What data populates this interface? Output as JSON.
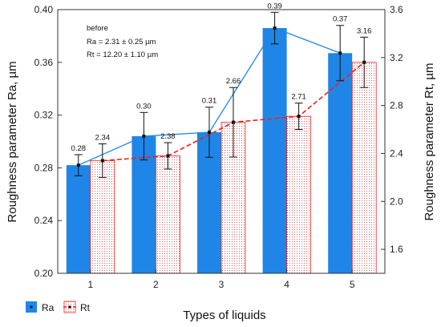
{
  "chart_data": {
    "type": "bar",
    "categories": [
      "1",
      "2",
      "3",
      "4",
      "5"
    ],
    "xlabel": "Types of liquids",
    "ylabel_left": "Roughness parameter Ra, µm",
    "ylabel_right": "Roughness parameter Rt, µm",
    "ylim_left": [
      0.2,
      0.4
    ],
    "ylim_right": [
      1.4,
      3.6
    ],
    "yticks_left": [
      "0.20",
      "0.24",
      "0.28",
      "0.32",
      "0.36",
      "0.40"
    ],
    "yticks_right": [
      "1.6",
      "2.0",
      "2.4",
      "2.8",
      "3.2",
      "3.6"
    ],
    "grid": false,
    "legend_position": "bottom-left",
    "annotation": {
      "line1": "before",
      "line2": "Ra = 2.31 ± 0.25 µm",
      "line3": "Rt = 12.20 ± 1.10 µm"
    },
    "series": [
      {
        "name": "Ra",
        "axis": "left",
        "color": "#1f86e8",
        "values": [
          0.282,
          0.304,
          0.307,
          0.386,
          0.367
        ],
        "error": [
          0.008,
          0.018,
          0.019,
          0.012,
          0.021
        ],
        "labels": [
          "0.28",
          "0.30",
          "0.31",
          "0.39",
          "0.37"
        ]
      },
      {
        "name": "Rt",
        "axis": "right",
        "color": "#e8231f",
        "values": [
          2.34,
          2.38,
          2.66,
          2.71,
          3.16
        ],
        "error": [
          0.14,
          0.11,
          0.29,
          0.11,
          0.21
        ],
        "labels": [
          "2.34",
          "2.38",
          "2.66",
          "2.71",
          "3.16"
        ]
      }
    ]
  }
}
